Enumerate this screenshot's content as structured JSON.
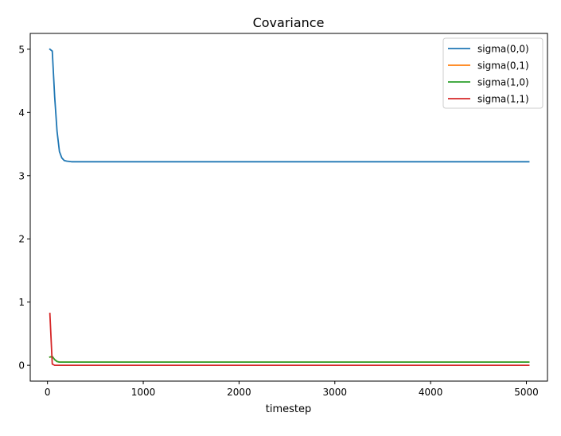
{
  "chart_data": {
    "type": "line",
    "title": "Covariance",
    "xlabel": "timestep",
    "ylabel": "",
    "xlim": [
      -180,
      5220
    ],
    "ylim": [
      -0.25,
      5.25
    ],
    "xticks": [
      0,
      1000,
      2000,
      3000,
      4000,
      5000
    ],
    "yticks": [
      0,
      1,
      2,
      3,
      4,
      5
    ],
    "grid": false,
    "legend_position": "upper-right",
    "series": [
      {
        "name": "sigma(0,0)",
        "color": "#1f77b4",
        "x": [
          25,
          50,
          75,
          100,
          125,
          150,
          175,
          200,
          250,
          300,
          500,
          1000,
          2000,
          3000,
          4000,
          5025
        ],
        "y": [
          5.0,
          4.97,
          4.25,
          3.7,
          3.38,
          3.28,
          3.24,
          3.23,
          3.22,
          3.22,
          3.22,
          3.22,
          3.22,
          3.22,
          3.22,
          3.22
        ]
      },
      {
        "name": "sigma(0,1)",
        "color": "#ff7f0e",
        "x": [
          25,
          50,
          75,
          100,
          125,
          150,
          175,
          200,
          250,
          300,
          500,
          1000,
          2000,
          3000,
          4000,
          5025
        ],
        "y": [
          0.13,
          0.14,
          0.09,
          0.06,
          0.05,
          0.05,
          0.05,
          0.05,
          0.05,
          0.05,
          0.05,
          0.05,
          0.05,
          0.05,
          0.05,
          0.05
        ]
      },
      {
        "name": "sigma(1,0)",
        "color": "#2ca02c",
        "x": [
          25,
          50,
          75,
          100,
          125,
          150,
          175,
          200,
          250,
          300,
          500,
          1000,
          2000,
          3000,
          4000,
          5025
        ],
        "y": [
          0.13,
          0.14,
          0.09,
          0.06,
          0.05,
          0.05,
          0.05,
          0.05,
          0.05,
          0.05,
          0.05,
          0.05,
          0.05,
          0.05,
          0.05,
          0.05
        ]
      },
      {
        "name": "sigma(1,1)",
        "color": "#d62728",
        "x": [
          25,
          50,
          75,
          100,
          150,
          200,
          300,
          500,
          1000,
          2000,
          3000,
          4000,
          5025
        ],
        "y": [
          0.82,
          0.02,
          0.0,
          0.0,
          0.0,
          0.0,
          0.0,
          0.0,
          0.0,
          0.0,
          0.0,
          0.0,
          0.0
        ]
      }
    ]
  }
}
